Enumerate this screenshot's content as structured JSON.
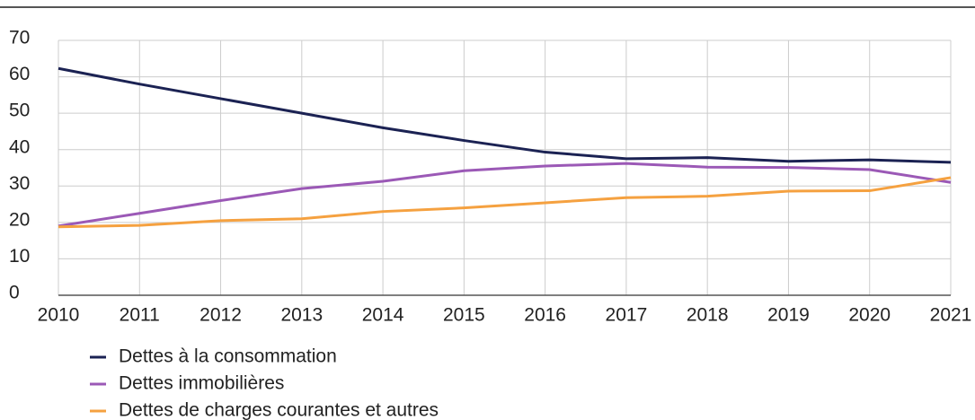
{
  "chart_data": {
    "type": "line",
    "x": [
      2010,
      2011,
      2012,
      2013,
      2014,
      2015,
      2016,
      2017,
      2018,
      2019,
      2020,
      2021
    ],
    "xlim": [
      2010,
      2021
    ],
    "xticks": [
      2010,
      2011,
      2012,
      2013,
      2014,
      2015,
      2016,
      2017,
      2018,
      2019,
      2020,
      2021
    ],
    "ylim": [
      0,
      70
    ],
    "yticks": [
      0,
      10,
      20,
      30,
      40,
      50,
      60,
      70
    ],
    "grid": true,
    "series": [
      {
        "name": "Dettes à la consommation",
        "color": "#1b2253",
        "values": [
          62.3,
          58,
          54,
          50,
          46,
          42.5,
          39.3,
          37.5,
          37.8,
          36.8,
          37.2,
          36.5
        ]
      },
      {
        "name": "Dettes immobilières",
        "color": "#9b59b6",
        "values": [
          19,
          22.5,
          26,
          29.3,
          31.3,
          34.2,
          35.5,
          36.2,
          35.2,
          35.1,
          34.5,
          31
        ]
      },
      {
        "name": "Dettes de charges courantes et autres",
        "color": "#f5a140",
        "values": [
          18.8,
          19.2,
          20.5,
          21,
          23,
          24,
          25.4,
          26.8,
          27.2,
          28.6,
          28.7,
          32.3
        ]
      }
    ]
  }
}
